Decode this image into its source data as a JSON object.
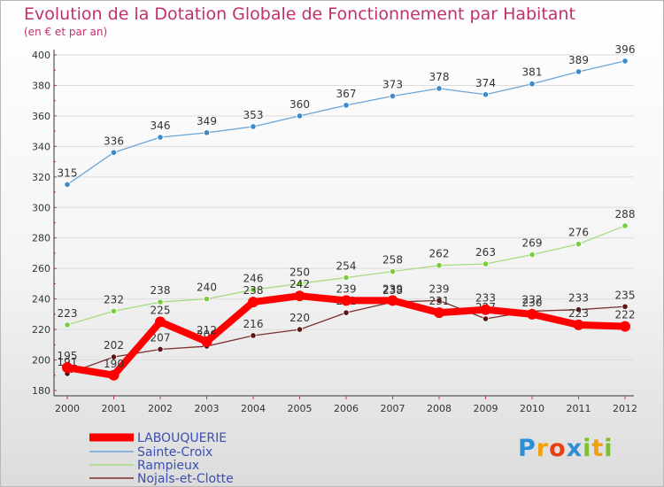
{
  "chart_data": {
    "type": "line",
    "title": "Evolution de la Dotation Globale de Fonctionnement par Habitant",
    "subtitle": "(en € et par an)",
    "x": [
      "2000",
      "2001",
      "2002",
      "2003",
      "2004",
      "2005",
      "2006",
      "2007",
      "2008",
      "2009",
      "2010",
      "2011",
      "2012"
    ],
    "ylim": [
      180,
      400
    ],
    "yticks": [
      180,
      200,
      220,
      240,
      260,
      280,
      300,
      320,
      340,
      360,
      380,
      400
    ],
    "grid": true,
    "legend_position": "bottom-left",
    "series": [
      {
        "name": "LABOUQUERIE",
        "color": "#ff0000",
        "point_color": "#ff0000",
        "values": [
          195,
          190,
          225,
          212,
          238,
          242,
          239,
          239,
          231,
          233,
          230,
          223,
          222
        ],
        "labels": [
          "195",
          "190",
          "225",
          "212",
          "238",
          "242",
          "239",
          "239",
          "231",
          "233",
          "230",
          "223",
          "222"
        ]
      },
      {
        "name": "Sainte-Croix",
        "color": "#6aa6d8",
        "point_color": "#3d8acb",
        "values": [
          315,
          336,
          346,
          349,
          353,
          360,
          367,
          373,
          378,
          374,
          381,
          389,
          396
        ],
        "labels": [
          "315",
          "336",
          "346",
          "349",
          "353",
          "360",
          "367",
          "373",
          "378",
          "374",
          "381",
          "389",
          "396"
        ]
      },
      {
        "name": "Rampieux",
        "color": "#a6dc80",
        "point_color": "#7ccc3c",
        "values": [
          223,
          232,
          238,
          240,
          246,
          250,
          254,
          258,
          262,
          263,
          269,
          276,
          288
        ],
        "labels": [
          "223",
          "232",
          "238",
          "240",
          "246",
          "250",
          "254",
          "258",
          "262",
          "263",
          "269",
          "276",
          "288"
        ]
      },
      {
        "name": "Nojals-et-Clotte",
        "color": "#7a3030",
        "point_color": "#5a1515",
        "values": [
          191,
          202,
          207,
          209,
          216,
          220,
          231,
          238,
          239,
          227,
          232,
          233,
          235
        ],
        "labels": [
          "191",
          "202",
          "207",
          "209",
          "216",
          "220",
          "231",
          "238",
          "239",
          "227",
          "232",
          "233",
          "235"
        ]
      }
    ]
  },
  "logo": {
    "letters": [
      "P",
      "r",
      "o",
      "x",
      "i",
      "t",
      "i"
    ],
    "colors": [
      "#2f8fd6",
      "#f0a010",
      "#e84010",
      "#2f8fd6",
      "#7cc030",
      "#f0a010",
      "#7cc030"
    ]
  }
}
